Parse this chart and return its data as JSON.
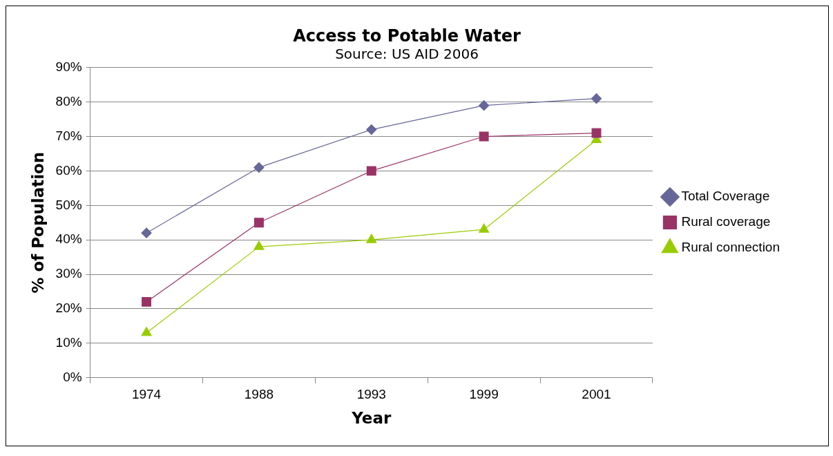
{
  "chart_data": {
    "type": "line",
    "title": "Access to Potable Water",
    "subtitle": "Source: US AID 2006",
    "xlabel": "Year",
    "ylabel": "% of Population",
    "categories": [
      "1974",
      "1988",
      "1993",
      "1999",
      "2001"
    ],
    "series": [
      {
        "name": "Total Coverage",
        "color": "#666699",
        "marker": "diamond",
        "values": [
          42,
          61,
          72,
          79,
          81
        ]
      },
      {
        "name": "Rural coverage",
        "color": "#993366",
        "marker": "square",
        "values": [
          22,
          45,
          60,
          70,
          71
        ]
      },
      {
        "name": "Rural connection",
        "color": "#99cc00",
        "marker": "triangle",
        "values": [
          13,
          38,
          40,
          43,
          69
        ]
      }
    ],
    "ylim": [
      0,
      90
    ],
    "yticks": [
      {
        "value": 0,
        "label": "0%"
      },
      {
        "value": 10,
        "label": "10%"
      },
      {
        "value": 20,
        "label": "20%"
      },
      {
        "value": 30,
        "label": "30%"
      },
      {
        "value": 40,
        "label": "40%"
      },
      {
        "value": 50,
        "label": "50%"
      },
      {
        "value": 60,
        "label": "60%"
      },
      {
        "value": 70,
        "label": "70%"
      },
      {
        "value": 80,
        "label": "80%"
      },
      {
        "value": 90,
        "label": "90%"
      }
    ],
    "grid": "y",
    "legend": "right",
    "line_style": "solid"
  }
}
